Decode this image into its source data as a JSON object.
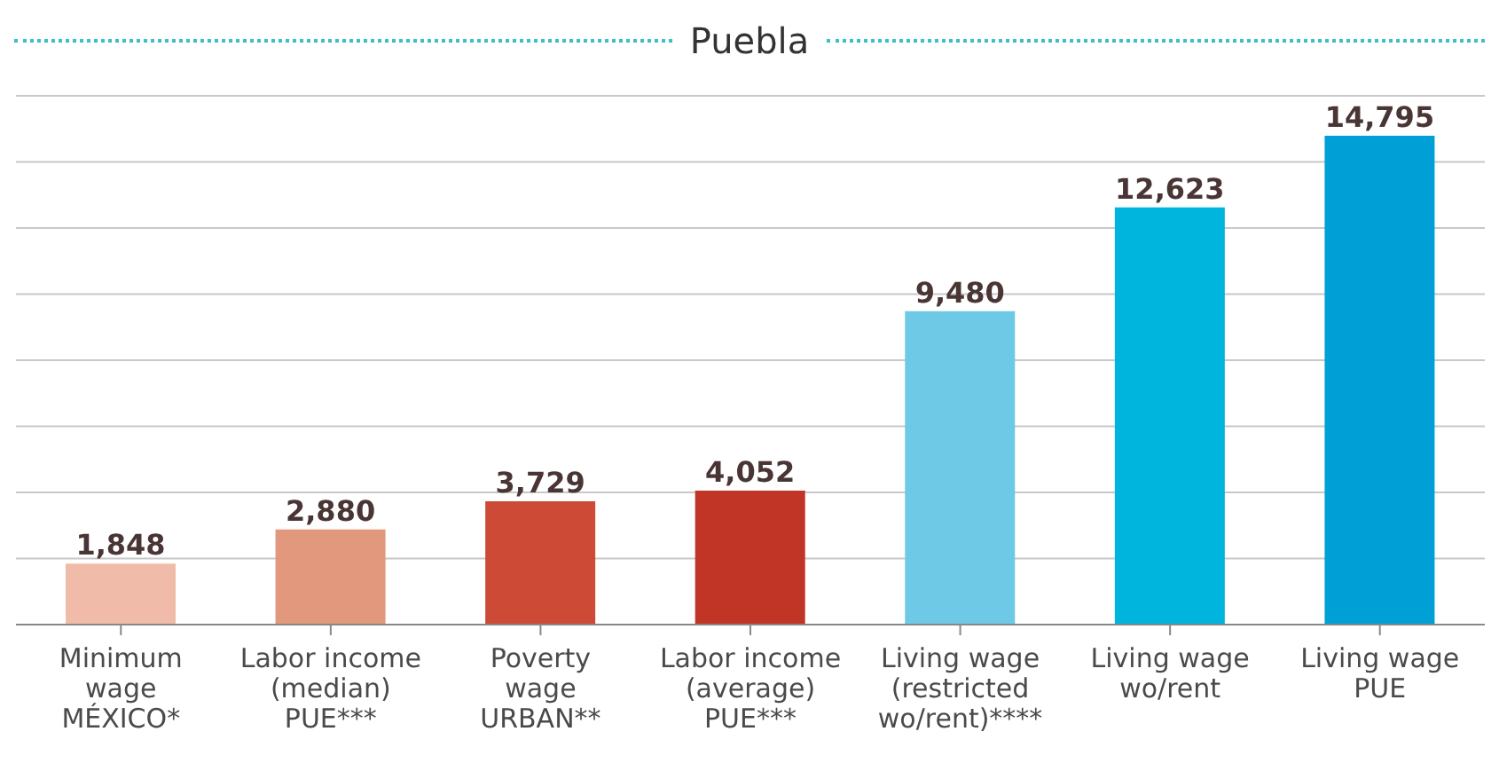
{
  "chart_data": {
    "type": "bar",
    "title": "Puebla",
    "categories": [
      "Minimum\nwage\nMÉXICO*",
      "Labor income\n(median)\nPUE***",
      "Poverty\nwage\nURBAN**",
      "Labor income\n(average)\nPUE***",
      "Living wage\n(restricted\nwo/rent)****",
      "Living wage\nwo/rent",
      "Living wage\nPUE"
    ],
    "values": [
      1848,
      2880,
      3729,
      4052,
      9480,
      12623,
      14795
    ],
    "colors": [
      "#f0bca9",
      "#e2987c",
      "#cd4b36",
      "#c03525",
      "#6ec9e6",
      "#00b5dd",
      "#00a0d6"
    ],
    "value_labels": [
      "1,848",
      "2,880",
      "3,729",
      "4,052",
      "9,480",
      "12,623",
      "14,795"
    ],
    "ylim": [
      0,
      16000
    ],
    "grid": "y",
    "tick_labels": "x"
  }
}
